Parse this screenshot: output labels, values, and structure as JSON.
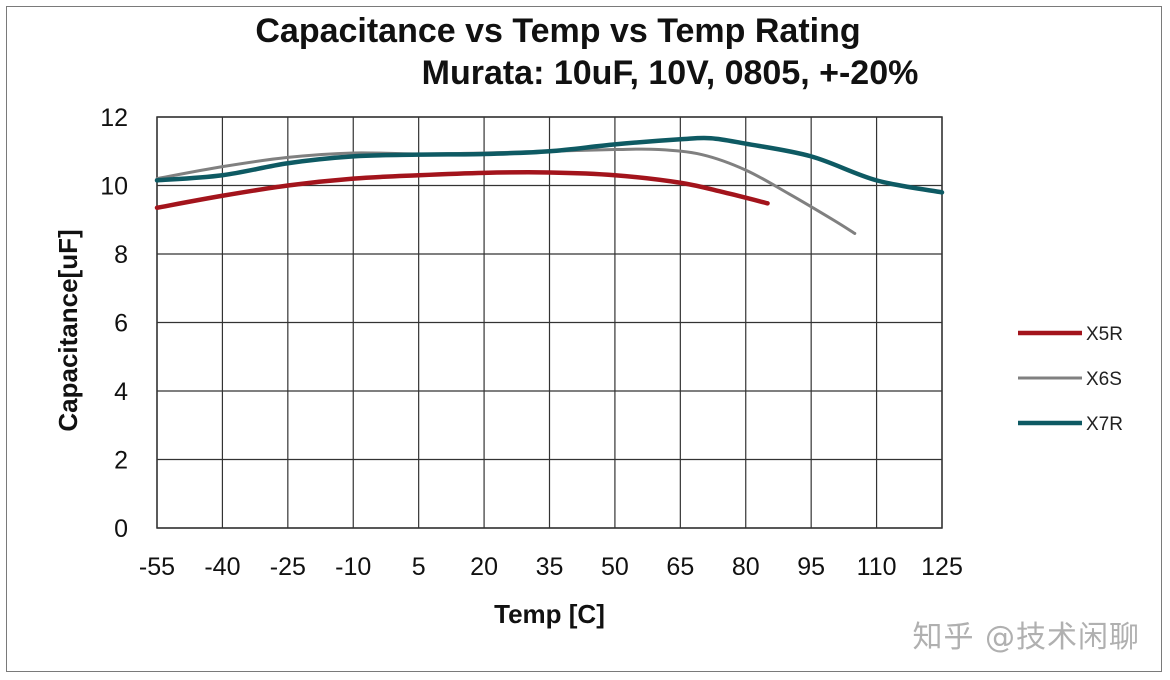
{
  "chart_data": {
    "type": "line",
    "title": "Capacitance vs Temp vs Temp Rating",
    "subtitle": "Murata: 10uF, 10V, 0805, +-20%",
    "xlabel": "Temp [C]",
    "ylabel": "Capacitance[uF]",
    "xlim": [
      -55,
      125
    ],
    "ylim": [
      0,
      12
    ],
    "xticks": [
      -55,
      -40,
      -25,
      -10,
      5,
      20,
      35,
      50,
      65,
      80,
      95,
      110,
      125
    ],
    "yticks": [
      0,
      2,
      4,
      6,
      8,
      10,
      12
    ],
    "grid": true,
    "legend_position": "right",
    "series": [
      {
        "name": "X5R",
        "color": "#a3141c",
        "x": [
          -55,
          -40,
          -25,
          -10,
          5,
          20,
          35,
          50,
          65,
          75,
          85
        ],
        "y": [
          9.35,
          9.7,
          10.0,
          10.2,
          10.3,
          10.37,
          10.38,
          10.3,
          10.08,
          9.8,
          9.48
        ]
      },
      {
        "name": "X6S",
        "color": "#808080",
        "x": [
          -55,
          -40,
          -25,
          -10,
          5,
          20,
          35,
          50,
          60,
          70,
          80,
          90,
          100,
          105
        ],
        "y": [
          10.2,
          10.55,
          10.82,
          10.95,
          10.92,
          10.95,
          11.0,
          11.05,
          11.05,
          10.9,
          10.45,
          9.75,
          9.0,
          8.6
        ]
      },
      {
        "name": "X7R",
        "color": "#0e5a63",
        "x": [
          -55,
          -40,
          -25,
          -10,
          5,
          20,
          35,
          50,
          65,
          72,
          80,
          95,
          110,
          125
        ],
        "y": [
          10.15,
          10.3,
          10.65,
          10.85,
          10.9,
          10.92,
          11.0,
          11.2,
          11.35,
          11.38,
          11.22,
          10.85,
          10.15,
          9.8
        ]
      }
    ]
  },
  "watermark": "知乎 @技术闲聊"
}
